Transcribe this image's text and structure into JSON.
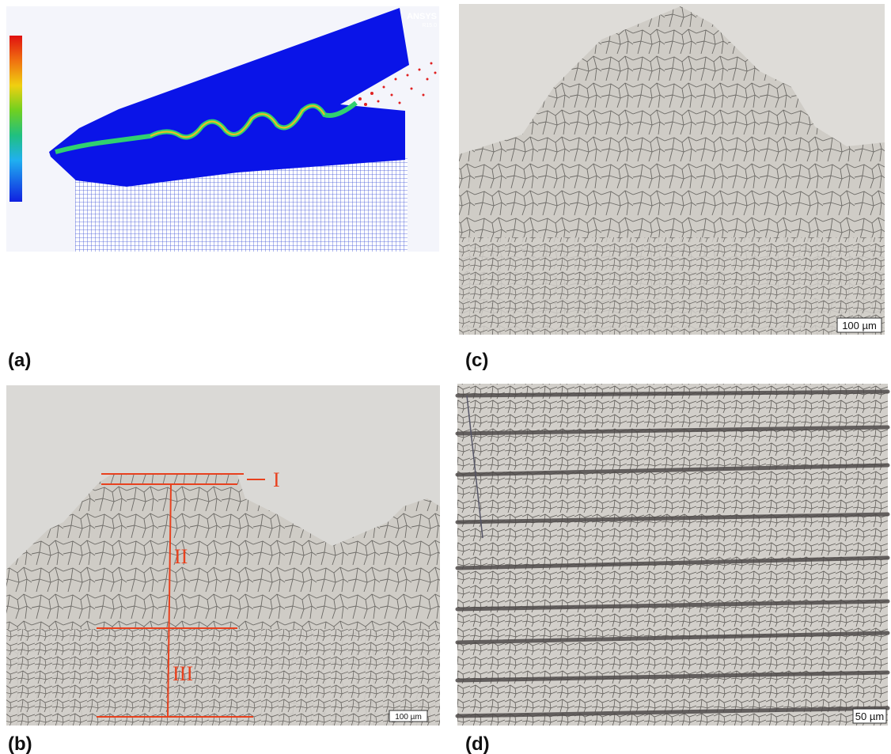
{
  "panels": [
    {
      "label": "(a)",
      "header": {
        "brand": "ANSYS",
        "version": "R15.0"
      }
    },
    {
      "label": "(b)",
      "scale_bar": "100 µm",
      "zones": [
        "I",
        "II",
        "III"
      ]
    },
    {
      "label": "(c)",
      "scale_bar": "100 µm"
    },
    {
      "label": "(d)",
      "scale_bar": "50 µm"
    }
  ]
}
